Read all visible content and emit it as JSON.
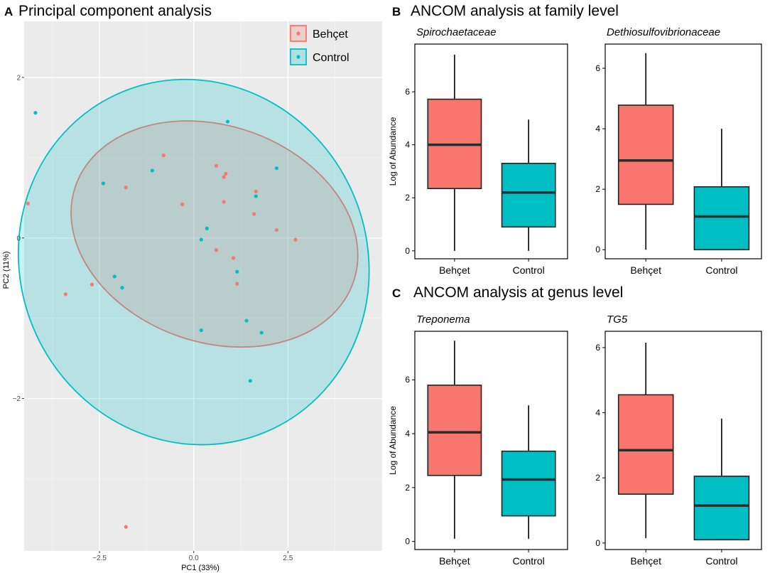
{
  "colors": {
    "behcet": "#F8766D",
    "control": "#00BFC4",
    "panel_bg": "#EBEBEB",
    "grid": "#FFFFFF"
  },
  "chart_data": [
    {
      "panel": "A",
      "type": "scatter",
      "title": "Principal component analysis",
      "xlabel": "PC1 (33%)",
      "ylabel": "PC2 (11%)",
      "xlim": [
        -4.5,
        5.0
      ],
      "ylim": [
        -3.9,
        2.7
      ],
      "xticks": [
        -2.5,
        0,
        2.5
      ],
      "xtick_labels": [
        "−2.5",
        "0.0",
        "2.5"
      ],
      "yticks": [
        -2,
        0,
        2
      ],
      "ytick_labels": [
        "−2",
        "0",
        "2"
      ],
      "legend": [
        "Behçet",
        "Control"
      ],
      "series": [
        {
          "name": "Behçet",
          "points": [
            [
              -4.4,
              0.43
            ],
            [
              -1.8,
              0.63
            ],
            [
              -0.8,
              1.03
            ],
            [
              -0.3,
              0.42
            ],
            [
              0.6,
              0.9
            ],
            [
              0.8,
              0.76
            ],
            [
              0.85,
              0.8
            ],
            [
              0.8,
              0.45
            ],
            [
              1.65,
              0.58
            ],
            [
              1.6,
              0.3
            ],
            [
              2.2,
              0.1
            ],
            [
              2.7,
              -0.02
            ],
            [
              0.6,
              -0.15
            ],
            [
              1.05,
              -0.25
            ],
            [
              1.15,
              -0.57
            ],
            [
              -2.7,
              -0.58
            ],
            [
              -3.4,
              -0.7
            ],
            [
              -1.8,
              -3.6
            ]
          ],
          "ellipse": {
            "cx": 0.55,
            "cy": 0.05,
            "rx": 3.9,
            "ry": 1.35,
            "angle_deg": 19
          }
        },
        {
          "name": "Control",
          "points": [
            [
              -4.2,
              1.56
            ],
            [
              -2.4,
              0.68
            ],
            [
              -1.1,
              0.84
            ],
            [
              0.9,
              1.45
            ],
            [
              2.2,
              0.87
            ],
            [
              1.65,
              0.52
            ],
            [
              0.35,
              0.12
            ],
            [
              0.2,
              -0.02
            ],
            [
              1.15,
              -0.42
            ],
            [
              -2.1,
              -0.48
            ],
            [
              -1.9,
              -0.62
            ],
            [
              1.4,
              -1.03
            ],
            [
              0.2,
              -1.15
            ],
            [
              1.8,
              -1.18
            ],
            [
              1.5,
              -1.78
            ]
          ],
          "ellipse": {
            "cx": 0.0,
            "cy": -0.3,
            "rx": 4.6,
            "ry": 2.3,
            "angle_deg": -25
          }
        }
      ]
    },
    {
      "panel": "B",
      "type": "box",
      "title": "ANCOM analysis at family level",
      "subtitle": "Spirochaetaceae",
      "ylabel": "Log of Abundance",
      "categories": [
        "Behçet",
        "Control"
      ],
      "ylim": [
        -0.3,
        7.8
      ],
      "yticks": [
        0,
        2,
        4,
        6
      ],
      "boxes": [
        {
          "min": 0,
          "q1": 2.35,
          "median": 4.0,
          "q3": 5.72,
          "max": 7.4
        },
        {
          "min": 0,
          "q1": 0.9,
          "median": 2.2,
          "q3": 3.3,
          "max": 4.95
        }
      ]
    },
    {
      "panel": "B",
      "type": "box",
      "title": "",
      "subtitle": "Dethiosulfovibrionaceae",
      "ylabel": "",
      "categories": [
        "Behçet",
        "Control"
      ],
      "ylim": [
        -0.3,
        6.8
      ],
      "yticks": [
        0,
        2,
        4,
        6
      ],
      "boxes": [
        {
          "min": 0,
          "q1": 1.5,
          "median": 2.95,
          "q3": 4.78,
          "max": 6.5
        },
        {
          "min": 0,
          "q1": 0,
          "median": 1.1,
          "q3": 2.08,
          "max": 4.0
        }
      ]
    },
    {
      "panel": "C",
      "type": "box",
      "title": "ANCOM analysis at genus level",
      "subtitle": "Treponema",
      "ylabel": "Log of Abundance",
      "categories": [
        "Behçet",
        "Control"
      ],
      "ylim": [
        -0.3,
        7.8
      ],
      "yticks": [
        0,
        2,
        4,
        6
      ],
      "boxes": [
        {
          "min": 0.1,
          "q1": 2.45,
          "median": 4.05,
          "q3": 5.8,
          "max": 7.45
        },
        {
          "min": 0.1,
          "q1": 0.95,
          "median": 2.3,
          "q3": 3.35,
          "max": 5.05
        }
      ]
    },
    {
      "panel": "C",
      "type": "box",
      "title": "",
      "subtitle": "TG5",
      "ylabel": "",
      "categories": [
        "Behçet",
        "Control"
      ],
      "ylim": [
        -0.2,
        6.5
      ],
      "yticks": [
        0,
        2,
        4,
        6
      ],
      "boxes": [
        {
          "min": 0.15,
          "q1": 1.5,
          "median": 2.85,
          "q3": 4.55,
          "max": 6.15
        },
        {
          "min": 0.1,
          "q1": 0.1,
          "median": 1.15,
          "q3": 2.05,
          "max": 3.82
        }
      ]
    }
  ]
}
